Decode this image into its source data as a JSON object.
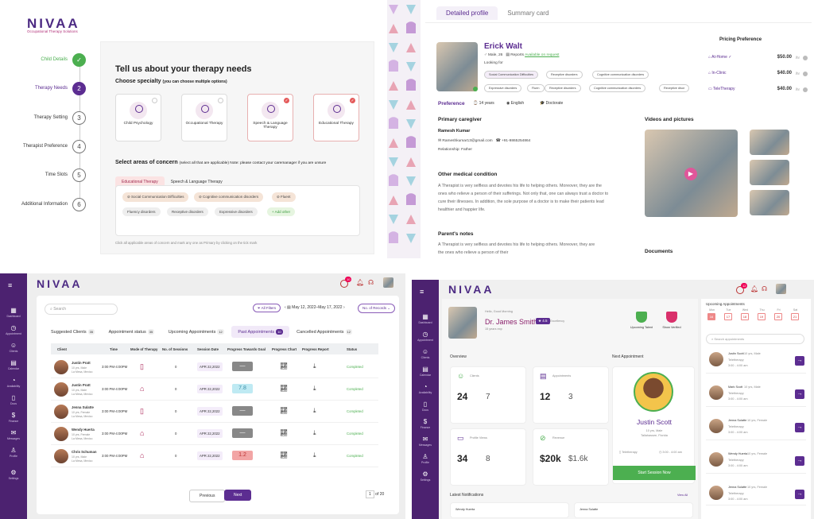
{
  "panel1": {
    "logo": "NIVAA",
    "tagline": "Occupational Therapy Solutions",
    "steps": [
      {
        "label": "Child Details",
        "mark": "✓"
      },
      {
        "label": "Therapy Needs",
        "mark": "2"
      },
      {
        "label": "Therapy Setting",
        "mark": "3"
      },
      {
        "label": "Therapist Preference",
        "mark": "4"
      },
      {
        "label": "Time Slots",
        "mark": "5"
      },
      {
        "label": "Additional Information",
        "mark": "6"
      }
    ],
    "title": "Tell us about your therapy needs",
    "specialty_heading": "Choose specialty",
    "specialty_note": "(you can choose multiple options)",
    "specialties": [
      "Child Psychology",
      "Occupational Therapy",
      "Speech & Language Therapy",
      "Educational Therapy"
    ],
    "concern_heading": "Select areas of concern",
    "concern_note": "(select all that are applicable)  Note: please contact your caremanager if you are unsure",
    "tabs": [
      "Educational Therapy",
      "Speech & Language Therapy"
    ],
    "chips": [
      "Social Communication Difficulties",
      "Cognitive communication disorders",
      "Fluent",
      "Fluency disorders",
      "Receptive disorders",
      "Expressive disorders",
      "+ Add other"
    ],
    "footer": "Click all applicable areas of concern and mark any one as Primary by clicking on the tick mark"
  },
  "panel2": {
    "tabs": [
      "Detailed profile",
      "Summary card"
    ],
    "name": "Erick Walt",
    "meta": "Male, 26",
    "reports": "Reports",
    "available": "Available on request",
    "looking_for": "Looking for",
    "tags": [
      "Social Communication Difficulties",
      "Receptive disorders",
      "Cognitive communication disorders",
      "Expressive disorders",
      "Fluen",
      "Receptive disorders",
      "Cognitive communication disorders",
      "Receptive disor"
    ],
    "preference_label": "Preference",
    "preferences": [
      "14 years",
      "English",
      "Doctorate"
    ],
    "pricing_title": "Pricing Preference",
    "pricing": [
      {
        "mode": "At-Home",
        "price": "$50.00",
        "unit": "/hr"
      },
      {
        "mode": "In-Clinic",
        "price": "$40.00",
        "unit": "/hr"
      },
      {
        "mode": "TeleTherapy",
        "price": "$40.00",
        "unit": "/hr"
      }
    ],
    "caregiver_heading": "Primary caregiver",
    "caregiver_name": "Ramesh Kumar",
    "caregiver_email": "Rameshkumar13@gmail.com",
    "caregiver_phone": "+91-9865254864",
    "caregiver_relation": "Relationship: Father",
    "videos_heading": "Videos and pictures",
    "other_heading": "Other medical condition",
    "other_text": "A Therapist is very selfless and devotes his life to helping others. Moreover, they are the ones who relieve a person of their sufferings. Not only that, one can always trust a doctor to cure their illnesses. In addition, the sole purpose of a doctor is to make their patients lead healthier and happier life.",
    "parents_heading": "Parent's notes",
    "parents_text": "A Therapist is very selfless and devotes his life to helping others. Moreover, they are the ones who relieve a person of their",
    "documents_heading": "Documents"
  },
  "panel3": {
    "logo": "NIVAA",
    "badge": "10",
    "search_placeholder": "Search",
    "filter": "All Filters",
    "date_range": "May 12, 2022–May 17, 2022",
    "records": "No. of Records",
    "tabs": [
      {
        "label": "Suggested Clients",
        "count": "35"
      },
      {
        "label": "Appointment status",
        "count": "35"
      },
      {
        "label": "Upcoming Appointments",
        "count": "12"
      },
      {
        "label": "Past Appointments",
        "count": "10"
      },
      {
        "label": "Cancelled Appointments",
        "count": "12"
      }
    ],
    "columns": [
      "Client",
      "Time",
      "Mode of Therapy",
      "No. of Sessions",
      "Session Date",
      "Progress Towards Goal",
      "Progress Chart",
      "Progress Report",
      "Status"
    ],
    "rows": [
      {
        "name": "Justin Pratt",
        "sub": "10 yrs, Male",
        "loc": "La Mesa, Mexico",
        "time": "3:00 PM-4:00PM",
        "sessions": "0",
        "date": "APR 22,2022",
        "goal": "—",
        "status": "Completed"
      },
      {
        "name": "Justin Pratt",
        "sub": "10 yrs, Male",
        "loc": "La Mesa, Mexico",
        "time": "3:00 PM-4:00PM",
        "sessions": "0",
        "date": "APR 22,2022",
        "goal": "7.8",
        "status": "Completed"
      },
      {
        "name": "Jenna Sulatte",
        "sub": "10 yrs, Female",
        "loc": "La Mesa, Mexico",
        "time": "3:00 PM-4:00PM",
        "sessions": "0",
        "date": "APR 22,2022",
        "goal": "—",
        "status": "Completed"
      },
      {
        "name": "Wendy Huerta",
        "sub": "10 yrs, Female",
        "loc": "La Mesa, Mexico",
        "time": "3:00 PM-4:00PM",
        "sessions": "0",
        "date": "APR 22,2022",
        "goal": "—",
        "status": "Completed"
      },
      {
        "name": "Chris Schuman",
        "sub": "10 yrs, Male",
        "loc": "La Mesa, Mexico",
        "time": "3:00 PM-4:00PM",
        "sessions": "0",
        "date": "APR 22,2022",
        "goal": "1.2",
        "status": "Completed"
      }
    ],
    "prev": "Previous",
    "next": "Next",
    "page": "1",
    "of": "of 20"
  },
  "sidebar_items": [
    "Dashboard",
    "Appointment",
    "Clients",
    "Calendar",
    "Availability",
    "Docs",
    "Finance",
    "Messages",
    "Profile",
    "Settings"
  ],
  "panel4": {
    "logo": "NIVAA",
    "badge": "12",
    "greeting": "Hello, Good Morning",
    "doctor": "Dr. James Smith",
    "rating": "4.5",
    "rating_label": "Excellency",
    "experience": "15 years exp",
    "badges": [
      "Upcoming Talent",
      "Show Verified"
    ],
    "overview": "Overview",
    "next_appt": "Next Appointment",
    "clients_label": "Clients",
    "clients_main": "24",
    "clients_sub": "7",
    "appts_label": "Appointments",
    "appts_main": "12",
    "appts_sub": "3",
    "profile_label": "Profile Views",
    "profile_main": "34",
    "profile_sub": "8",
    "revenue_label": "Revenue",
    "revenue_main": "$20k",
    "revenue_sub": "$1.6k",
    "next_name": "Justin Scott",
    "next_sub": "10 yrs, Male",
    "next_loc": "Tallahassee, Florida",
    "next_mode": "Teletherapy",
    "next_time": "3:00 - 4:00 am",
    "start_btn": "Start Session Now",
    "notifications": "Latest Notifications",
    "view_all": "View All",
    "notif_names": [
      "Wendy Huerta",
      "Jenna Sulatte"
    ],
    "upcoming": "Upcoming Appointments",
    "days": [
      {
        "d": "Mon",
        "n": "16"
      },
      {
        "d": "Tue",
        "n": "17"
      },
      {
        "d": "Wed",
        "n": "18"
      },
      {
        "d": "Thu",
        "n": "19"
      },
      {
        "d": "Fri",
        "n": "20"
      },
      {
        "d": "Sat",
        "n": "21"
      }
    ],
    "search_placeholder": "Search appointments",
    "appts": [
      {
        "name": "Justin Scott",
        "sub": "10 yrs, Male",
        "mode": "Teletherapy",
        "time": "3:00 - 4:00 am"
      },
      {
        "name": "Mark Scott",
        "sub": "10 yrs, Male",
        "mode": "Teletherapy",
        "time": "3:00 - 4:00 am"
      },
      {
        "name": "Jenna Sulatte",
        "sub": "10 yrs, Female",
        "mode": "Teletherapy",
        "time": "3:00 - 4:00 am"
      },
      {
        "name": "Wendy Huerta",
        "sub": "10 yrs, Female",
        "mode": "Teletherapy",
        "time": "3:00 - 4:00 am"
      },
      {
        "name": "Jenna Sulatte",
        "sub": "10 yrs, Female",
        "mode": "Teletherapy",
        "time": "3:00 - 4:00 am"
      }
    ]
  }
}
